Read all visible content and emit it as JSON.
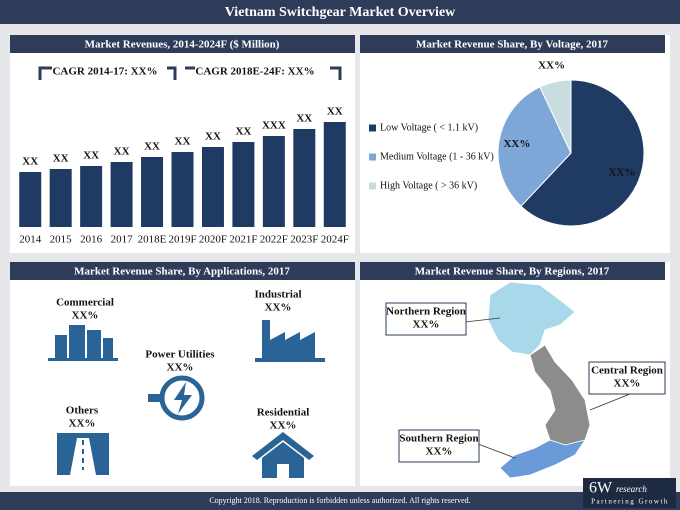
{
  "header": {
    "title": "Vietnam Switchgear Market Overview"
  },
  "chart_data": [
    {
      "type": "bar",
      "title": "Market Revenues, 2014-2024F ($ Million)",
      "annotations": [
        "CAGR 2014-17: XX%",
        "CAGR 2018E-24F: XX%"
      ],
      "categories": [
        "2014",
        "2015",
        "2016",
        "2017",
        "2018E",
        "2019F",
        "2020F",
        "2021F",
        "2022F",
        "2023F",
        "2024F"
      ],
      "values": [
        55,
        58,
        61,
        65,
        70,
        75,
        80,
        85,
        91,
        98,
        105
      ],
      "value_labels": [
        "XX",
        "XX",
        "XX",
        "XX",
        "XX",
        "XX",
        "XX",
        "XX",
        "XXX",
        "XX",
        "XX"
      ],
      "color": "#1f3b64",
      "ylim": [
        0,
        110
      ]
    },
    {
      "type": "pie",
      "title": "Market Revenue Share, By Voltage, 2017",
      "categories": [
        "Low Voltage ( < 1.1 kV)",
        "Medium Voltage (1 - 36 kV)",
        "High Voltage ( > 36 kV)"
      ],
      "values": [
        62,
        31,
        7
      ],
      "value_labels": [
        "XX%",
        "XX%",
        "XX%"
      ],
      "colors": [
        "#1f3b64",
        "#7ea7d8",
        "#c8dde0"
      ],
      "legend": "left"
    }
  ],
  "applications": {
    "title": "Market Revenue Share, By Applications, 2017",
    "items": [
      {
        "name": "Commercial",
        "share": "XX%"
      },
      {
        "name": "Industrial",
        "share": "XX%"
      },
      {
        "name": "Power Utilities",
        "share": "XX%"
      },
      {
        "name": "Others",
        "share": "XX%"
      },
      {
        "name": "Residential",
        "share": "XX%"
      }
    ]
  },
  "regions": {
    "title": "Market Revenue Share, By Regions, 2017",
    "items": [
      {
        "name": "Northern Region",
        "share": "XX%"
      },
      {
        "name": "Central Region",
        "share": "XX%"
      },
      {
        "name": "Southern Region",
        "share": "XX%"
      }
    ]
  },
  "footer": {
    "copyright": "Copyright 2018. Reproduction is forbidden unless authorized. All rights reserved.",
    "logo": "6W",
    "logo_suffix": "research",
    "tagline": "Partnering Growth"
  }
}
